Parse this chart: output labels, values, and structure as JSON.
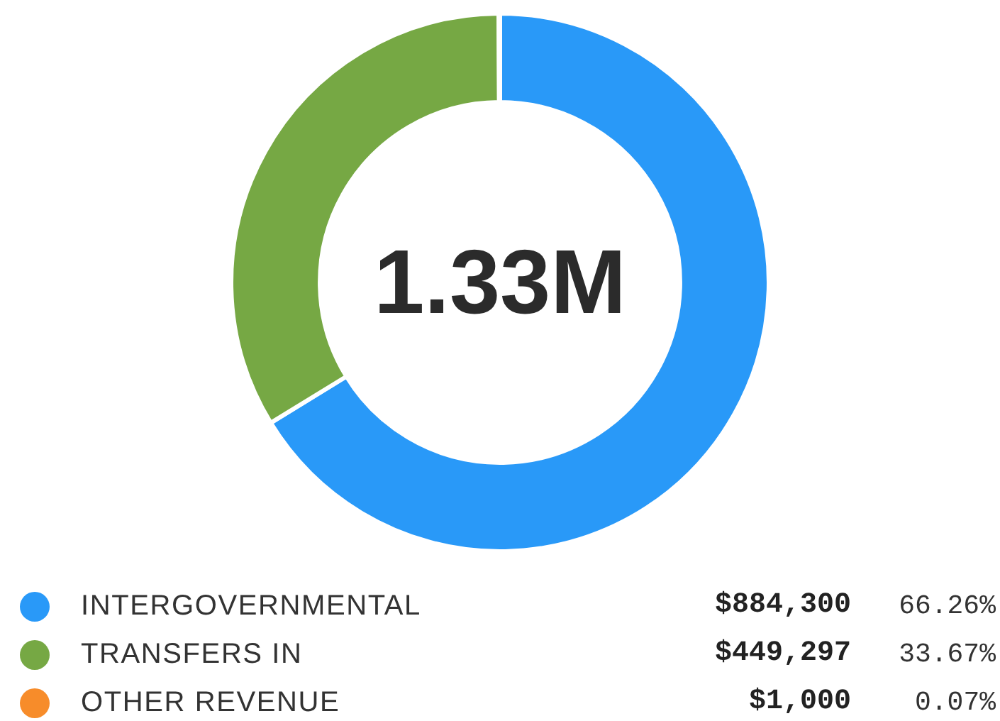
{
  "chart_data": {
    "type": "donut",
    "categories": [
      "INTERGOVERNMENTAL",
      "TRANSFERS IN",
      "OTHER REVENUE"
    ],
    "values": [
      884300,
      449297,
      1000
    ],
    "colors": [
      "#2999f8",
      "#76a844",
      "#f78c2a"
    ],
    "value_labels": [
      "$884,300",
      "$449,297",
      "$1,000"
    ],
    "annotations": [
      "1.33M",
      "66.26%",
      "33.67%",
      "0.07%"
    ],
    "legend": "bottom"
  }
}
